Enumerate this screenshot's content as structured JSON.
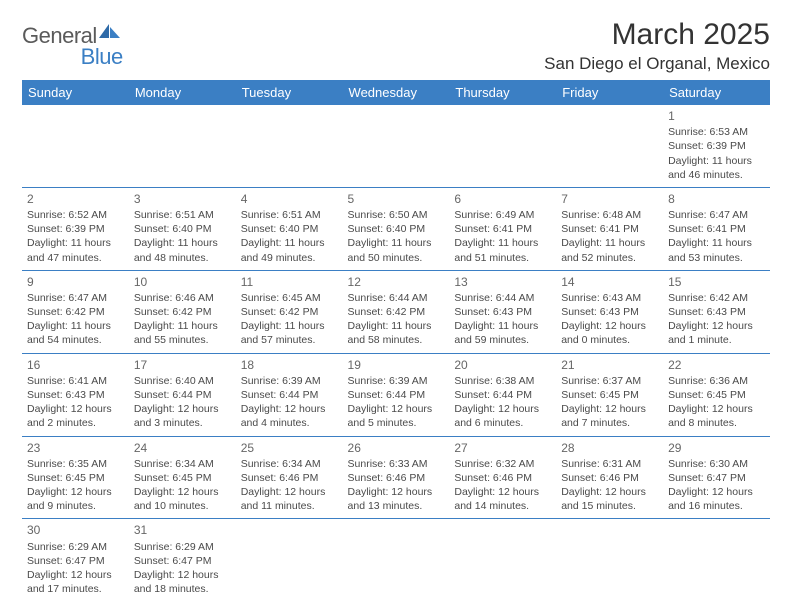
{
  "logo": {
    "part1": "General",
    "part2": "Blue"
  },
  "title": "March 2025",
  "location": "San Diego el Organal, Mexico",
  "colors": {
    "header_bg": "#3b7fc4",
    "header_fg": "#ffffff",
    "border": "#3b7fc4",
    "text": "#4a4a4a",
    "daynum": "#666666"
  },
  "weekdays": [
    "Sunday",
    "Monday",
    "Tuesday",
    "Wednesday",
    "Thursday",
    "Friday",
    "Saturday"
  ],
  "weeks": [
    [
      null,
      null,
      null,
      null,
      null,
      null,
      {
        "n": "1",
        "sr": "Sunrise: 6:53 AM",
        "ss": "Sunset: 6:39 PM",
        "dl": "Daylight: 11 hours and 46 minutes."
      }
    ],
    [
      {
        "n": "2",
        "sr": "Sunrise: 6:52 AM",
        "ss": "Sunset: 6:39 PM",
        "dl": "Daylight: 11 hours and 47 minutes."
      },
      {
        "n": "3",
        "sr": "Sunrise: 6:51 AM",
        "ss": "Sunset: 6:40 PM",
        "dl": "Daylight: 11 hours and 48 minutes."
      },
      {
        "n": "4",
        "sr": "Sunrise: 6:51 AM",
        "ss": "Sunset: 6:40 PM",
        "dl": "Daylight: 11 hours and 49 minutes."
      },
      {
        "n": "5",
        "sr": "Sunrise: 6:50 AM",
        "ss": "Sunset: 6:40 PM",
        "dl": "Daylight: 11 hours and 50 minutes."
      },
      {
        "n": "6",
        "sr": "Sunrise: 6:49 AM",
        "ss": "Sunset: 6:41 PM",
        "dl": "Daylight: 11 hours and 51 minutes."
      },
      {
        "n": "7",
        "sr": "Sunrise: 6:48 AM",
        "ss": "Sunset: 6:41 PM",
        "dl": "Daylight: 11 hours and 52 minutes."
      },
      {
        "n": "8",
        "sr": "Sunrise: 6:47 AM",
        "ss": "Sunset: 6:41 PM",
        "dl": "Daylight: 11 hours and 53 minutes."
      }
    ],
    [
      {
        "n": "9",
        "sr": "Sunrise: 6:47 AM",
        "ss": "Sunset: 6:42 PM",
        "dl": "Daylight: 11 hours and 54 minutes."
      },
      {
        "n": "10",
        "sr": "Sunrise: 6:46 AM",
        "ss": "Sunset: 6:42 PM",
        "dl": "Daylight: 11 hours and 55 minutes."
      },
      {
        "n": "11",
        "sr": "Sunrise: 6:45 AM",
        "ss": "Sunset: 6:42 PM",
        "dl": "Daylight: 11 hours and 57 minutes."
      },
      {
        "n": "12",
        "sr": "Sunrise: 6:44 AM",
        "ss": "Sunset: 6:42 PM",
        "dl": "Daylight: 11 hours and 58 minutes."
      },
      {
        "n": "13",
        "sr": "Sunrise: 6:44 AM",
        "ss": "Sunset: 6:43 PM",
        "dl": "Daylight: 11 hours and 59 minutes."
      },
      {
        "n": "14",
        "sr": "Sunrise: 6:43 AM",
        "ss": "Sunset: 6:43 PM",
        "dl": "Daylight: 12 hours and 0 minutes."
      },
      {
        "n": "15",
        "sr": "Sunrise: 6:42 AM",
        "ss": "Sunset: 6:43 PM",
        "dl": "Daylight: 12 hours and 1 minute."
      }
    ],
    [
      {
        "n": "16",
        "sr": "Sunrise: 6:41 AM",
        "ss": "Sunset: 6:43 PM",
        "dl": "Daylight: 12 hours and 2 minutes."
      },
      {
        "n": "17",
        "sr": "Sunrise: 6:40 AM",
        "ss": "Sunset: 6:44 PM",
        "dl": "Daylight: 12 hours and 3 minutes."
      },
      {
        "n": "18",
        "sr": "Sunrise: 6:39 AM",
        "ss": "Sunset: 6:44 PM",
        "dl": "Daylight: 12 hours and 4 minutes."
      },
      {
        "n": "19",
        "sr": "Sunrise: 6:39 AM",
        "ss": "Sunset: 6:44 PM",
        "dl": "Daylight: 12 hours and 5 minutes."
      },
      {
        "n": "20",
        "sr": "Sunrise: 6:38 AM",
        "ss": "Sunset: 6:44 PM",
        "dl": "Daylight: 12 hours and 6 minutes."
      },
      {
        "n": "21",
        "sr": "Sunrise: 6:37 AM",
        "ss": "Sunset: 6:45 PM",
        "dl": "Daylight: 12 hours and 7 minutes."
      },
      {
        "n": "22",
        "sr": "Sunrise: 6:36 AM",
        "ss": "Sunset: 6:45 PM",
        "dl": "Daylight: 12 hours and 8 minutes."
      }
    ],
    [
      {
        "n": "23",
        "sr": "Sunrise: 6:35 AM",
        "ss": "Sunset: 6:45 PM",
        "dl": "Daylight: 12 hours and 9 minutes."
      },
      {
        "n": "24",
        "sr": "Sunrise: 6:34 AM",
        "ss": "Sunset: 6:45 PM",
        "dl": "Daylight: 12 hours and 10 minutes."
      },
      {
        "n": "25",
        "sr": "Sunrise: 6:34 AM",
        "ss": "Sunset: 6:46 PM",
        "dl": "Daylight: 12 hours and 11 minutes."
      },
      {
        "n": "26",
        "sr": "Sunrise: 6:33 AM",
        "ss": "Sunset: 6:46 PM",
        "dl": "Daylight: 12 hours and 13 minutes."
      },
      {
        "n": "27",
        "sr": "Sunrise: 6:32 AM",
        "ss": "Sunset: 6:46 PM",
        "dl": "Daylight: 12 hours and 14 minutes."
      },
      {
        "n": "28",
        "sr": "Sunrise: 6:31 AM",
        "ss": "Sunset: 6:46 PM",
        "dl": "Daylight: 12 hours and 15 minutes."
      },
      {
        "n": "29",
        "sr": "Sunrise: 6:30 AM",
        "ss": "Sunset: 6:47 PM",
        "dl": "Daylight: 12 hours and 16 minutes."
      }
    ],
    [
      {
        "n": "30",
        "sr": "Sunrise: 6:29 AM",
        "ss": "Sunset: 6:47 PM",
        "dl": "Daylight: 12 hours and 17 minutes."
      },
      {
        "n": "31",
        "sr": "Sunrise: 6:29 AM",
        "ss": "Sunset: 6:47 PM",
        "dl": "Daylight: 12 hours and 18 minutes."
      },
      null,
      null,
      null,
      null,
      null
    ]
  ]
}
